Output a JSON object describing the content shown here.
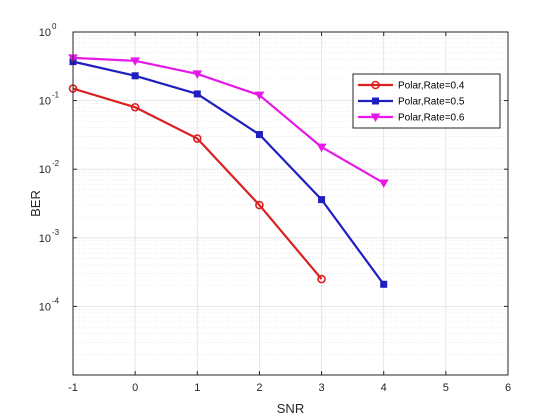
{
  "chart_data": {
    "type": "line",
    "title": "",
    "xlabel": "SNR",
    "ylabel": "BER",
    "xlim": [
      -1,
      6
    ],
    "ylim": [
      1e-05,
      1
    ],
    "yscale": "log",
    "grid": true,
    "minor_grid": true,
    "legend_position": "top-right",
    "x_ticks": [
      "-1",
      "0",
      "1",
      "2",
      "3",
      "4",
      "5",
      "6"
    ],
    "y_ticks": [
      {
        "exp": "0",
        "value": 1
      },
      {
        "exp": "-1",
        "value": 0.1
      },
      {
        "exp": "-2",
        "value": 0.01
      },
      {
        "exp": "-3",
        "value": 0.001
      },
      {
        "exp": "-4",
        "value": 0.0001
      }
    ],
    "y_tick_base": "10",
    "series": [
      {
        "name": "Polar,Rate=0.4",
        "color": "#d92121",
        "marker": "circle",
        "x": [
          -1,
          0,
          1,
          2,
          3
        ],
        "y": [
          0.15,
          0.08,
          0.028,
          0.003,
          0.00025
        ]
      },
      {
        "name": "Polar,Rate=0.5",
        "color": "#1f1fbf",
        "marker": "square",
        "x": [
          -1,
          0,
          1,
          2,
          3,
          4
        ],
        "y": [
          0.37,
          0.23,
          0.125,
          0.032,
          0.0036,
          0.00021
        ]
      },
      {
        "name": "Polar,Rate=0.6",
        "color": "#e619e6",
        "marker": "triangle-down",
        "x": [
          -1,
          0,
          1,
          2,
          3,
          4
        ],
        "y": [
          0.42,
          0.38,
          0.245,
          0.12,
          0.021,
          0.0063
        ]
      }
    ]
  }
}
